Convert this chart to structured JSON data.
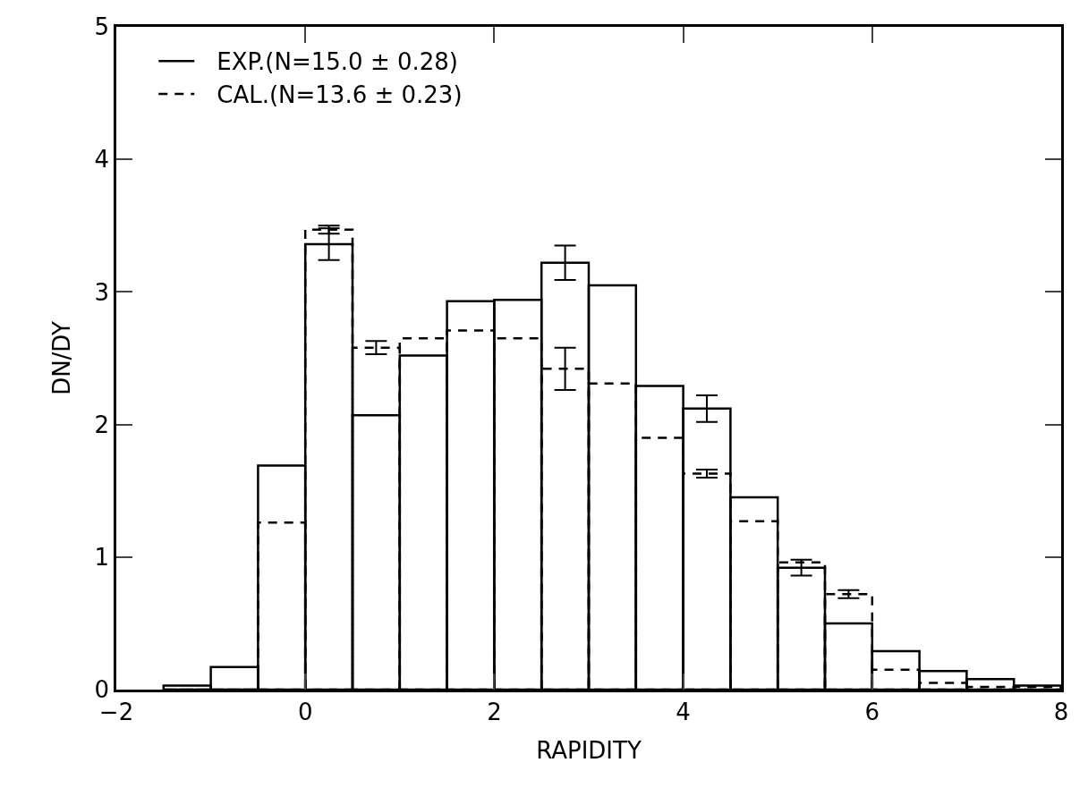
{
  "chart_data": {
    "type": "histogram",
    "xlabel": "RAPIDITY",
    "ylabel": "DN/DY",
    "bins": [
      -1.5,
      -1,
      -0.5,
      0,
      0.5,
      1,
      1.5,
      2,
      2.5,
      3,
      3.5,
      4,
      4.5,
      5,
      5.5,
      6,
      6.5,
      7,
      7.5,
      8
    ],
    "series": [
      {
        "name": "EXP.(N=15.0 ± 0.28)",
        "color": "#000000",
        "line_style": "solid",
        "values": [
          0.03,
          0.17,
          1.69,
          3.36,
          2.07,
          2.52,
          2.93,
          2.94,
          3.22,
          3.05,
          2.29,
          2.12,
          1.45,
          0.92,
          0.5,
          0.29,
          0.14,
          0.08,
          0.03
        ],
        "errors": [
          null,
          null,
          null,
          0.12,
          null,
          null,
          null,
          null,
          0.13,
          null,
          null,
          0.1,
          null,
          0.06,
          null,
          null,
          null,
          null,
          null
        ]
      },
      {
        "name": "CAL.(N=13.6 ± 0.23)",
        "color": "#000000",
        "line_style": "dashed",
        "values": [
          0,
          0,
          1.26,
          3.47,
          2.58,
          2.65,
          2.71,
          2.65,
          2.42,
          2.31,
          1.9,
          1.63,
          1.27,
          0.96,
          0.72,
          0.15,
          0.05,
          0.02,
          0.02
        ],
        "errors": [
          null,
          null,
          null,
          0.03,
          0.05,
          null,
          null,
          null,
          0.16,
          null,
          null,
          0.03,
          null,
          null,
          0.03,
          null,
          null,
          null,
          null
        ]
      }
    ],
    "xlim": [
      -2,
      8
    ],
    "xticks": [
      {
        "value": -2,
        "label": "−2"
      },
      0,
      2,
      4,
      6,
      8
    ],
    "ylim": [
      0,
      5
    ],
    "yticks": [
      0,
      1,
      2,
      3,
      4,
      5
    ],
    "grid": false,
    "legend": "top left"
  }
}
